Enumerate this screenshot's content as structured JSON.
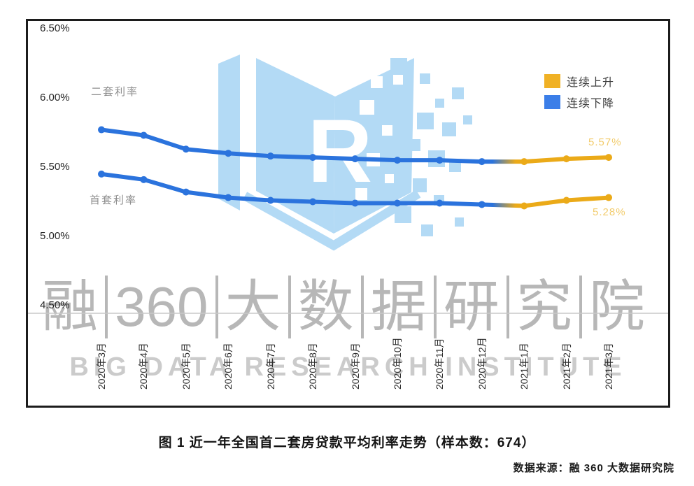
{
  "page": {
    "source": "数据来源：融 360 大数据研究院"
  },
  "watermark": {
    "cn_parts": [
      "融",
      "360",
      "大",
      "数",
      "据",
      "研",
      "究",
      "院"
    ],
    "en": "BIG DATA RESEARCH INSTITUTE",
    "logo_letter": "R",
    "logo_color": "#b3daf5",
    "text_color": "#ababab"
  },
  "legend": {
    "items": [
      {
        "label": "连续上升",
        "color": "#f0b125"
      },
      {
        "label": "连续下降",
        "color": "#3b7ee8"
      }
    ]
  },
  "chart_data": {
    "type": "line",
    "title": "图 1 近一年全国首二套房贷款平均利率走势（样本数：674）",
    "sample_size": 674,
    "categories": [
      "2020年3月",
      "2020年4月",
      "2020年5月",
      "2020年6月",
      "2020年7月",
      "2020年8月",
      "2020年9月",
      "2020年10月",
      "2020年11月",
      "2020年12月",
      "2021年1月",
      "2021年2月",
      "2021年3月"
    ],
    "series": [
      {
        "name": "二套利率",
        "values": [
          5.77,
          5.73,
          5.63,
          5.6,
          5.58,
          5.57,
          5.56,
          5.55,
          5.55,
          5.54,
          5.54,
          5.56,
          5.57
        ],
        "end_label": "5.57%"
      },
      {
        "name": "首套利率",
        "values": [
          5.45,
          5.41,
          5.32,
          5.28,
          5.26,
          5.25,
          5.24,
          5.24,
          5.24,
          5.23,
          5.22,
          5.26,
          5.28
        ],
        "end_label": "5.28%"
      }
    ],
    "y_ticks": [
      "6.50%",
      "6.00%",
      "5.50%",
      "5.00%",
      "4.50%"
    ],
    "ylim": [
      4.5,
      6.5
    ],
    "grid": "off",
    "legend_position": "top-right",
    "decline_color": "#2b73dd",
    "rise_color": "#ebaa18",
    "end_label_color": "#f2cc6d",
    "rise_start_index": 10
  }
}
